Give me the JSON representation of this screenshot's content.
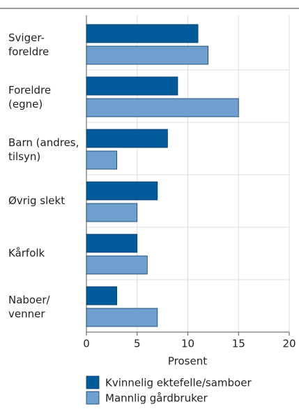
{
  "chart_data": {
    "type": "barh",
    "categories": [
      [
        "Sviger-",
        "foreldre"
      ],
      [
        "Foreldre",
        "(egne)"
      ],
      [
        "Barn (andres,",
        "tilsyn)"
      ],
      [
        "Øvrig slekt"
      ],
      [
        "Kårfolk"
      ],
      [
        "Naboer/",
        "venner"
      ]
    ],
    "series": [
      {
        "name": "Kvinnelig ektefelle/samboer",
        "color": "#005b9a",
        "values": [
          11,
          9,
          8,
          7,
          5,
          3
        ]
      },
      {
        "name": "Mannlig gårdbruker",
        "color": "#6f9fcf",
        "values": [
          12,
          15,
          3,
          5,
          6,
          7
        ]
      }
    ],
    "xlabel": "Prosent",
    "xlim": [
      0,
      20
    ],
    "xticks": [
      0,
      5,
      10,
      15,
      20
    ],
    "grid": true,
    "legend": "bottom"
  }
}
